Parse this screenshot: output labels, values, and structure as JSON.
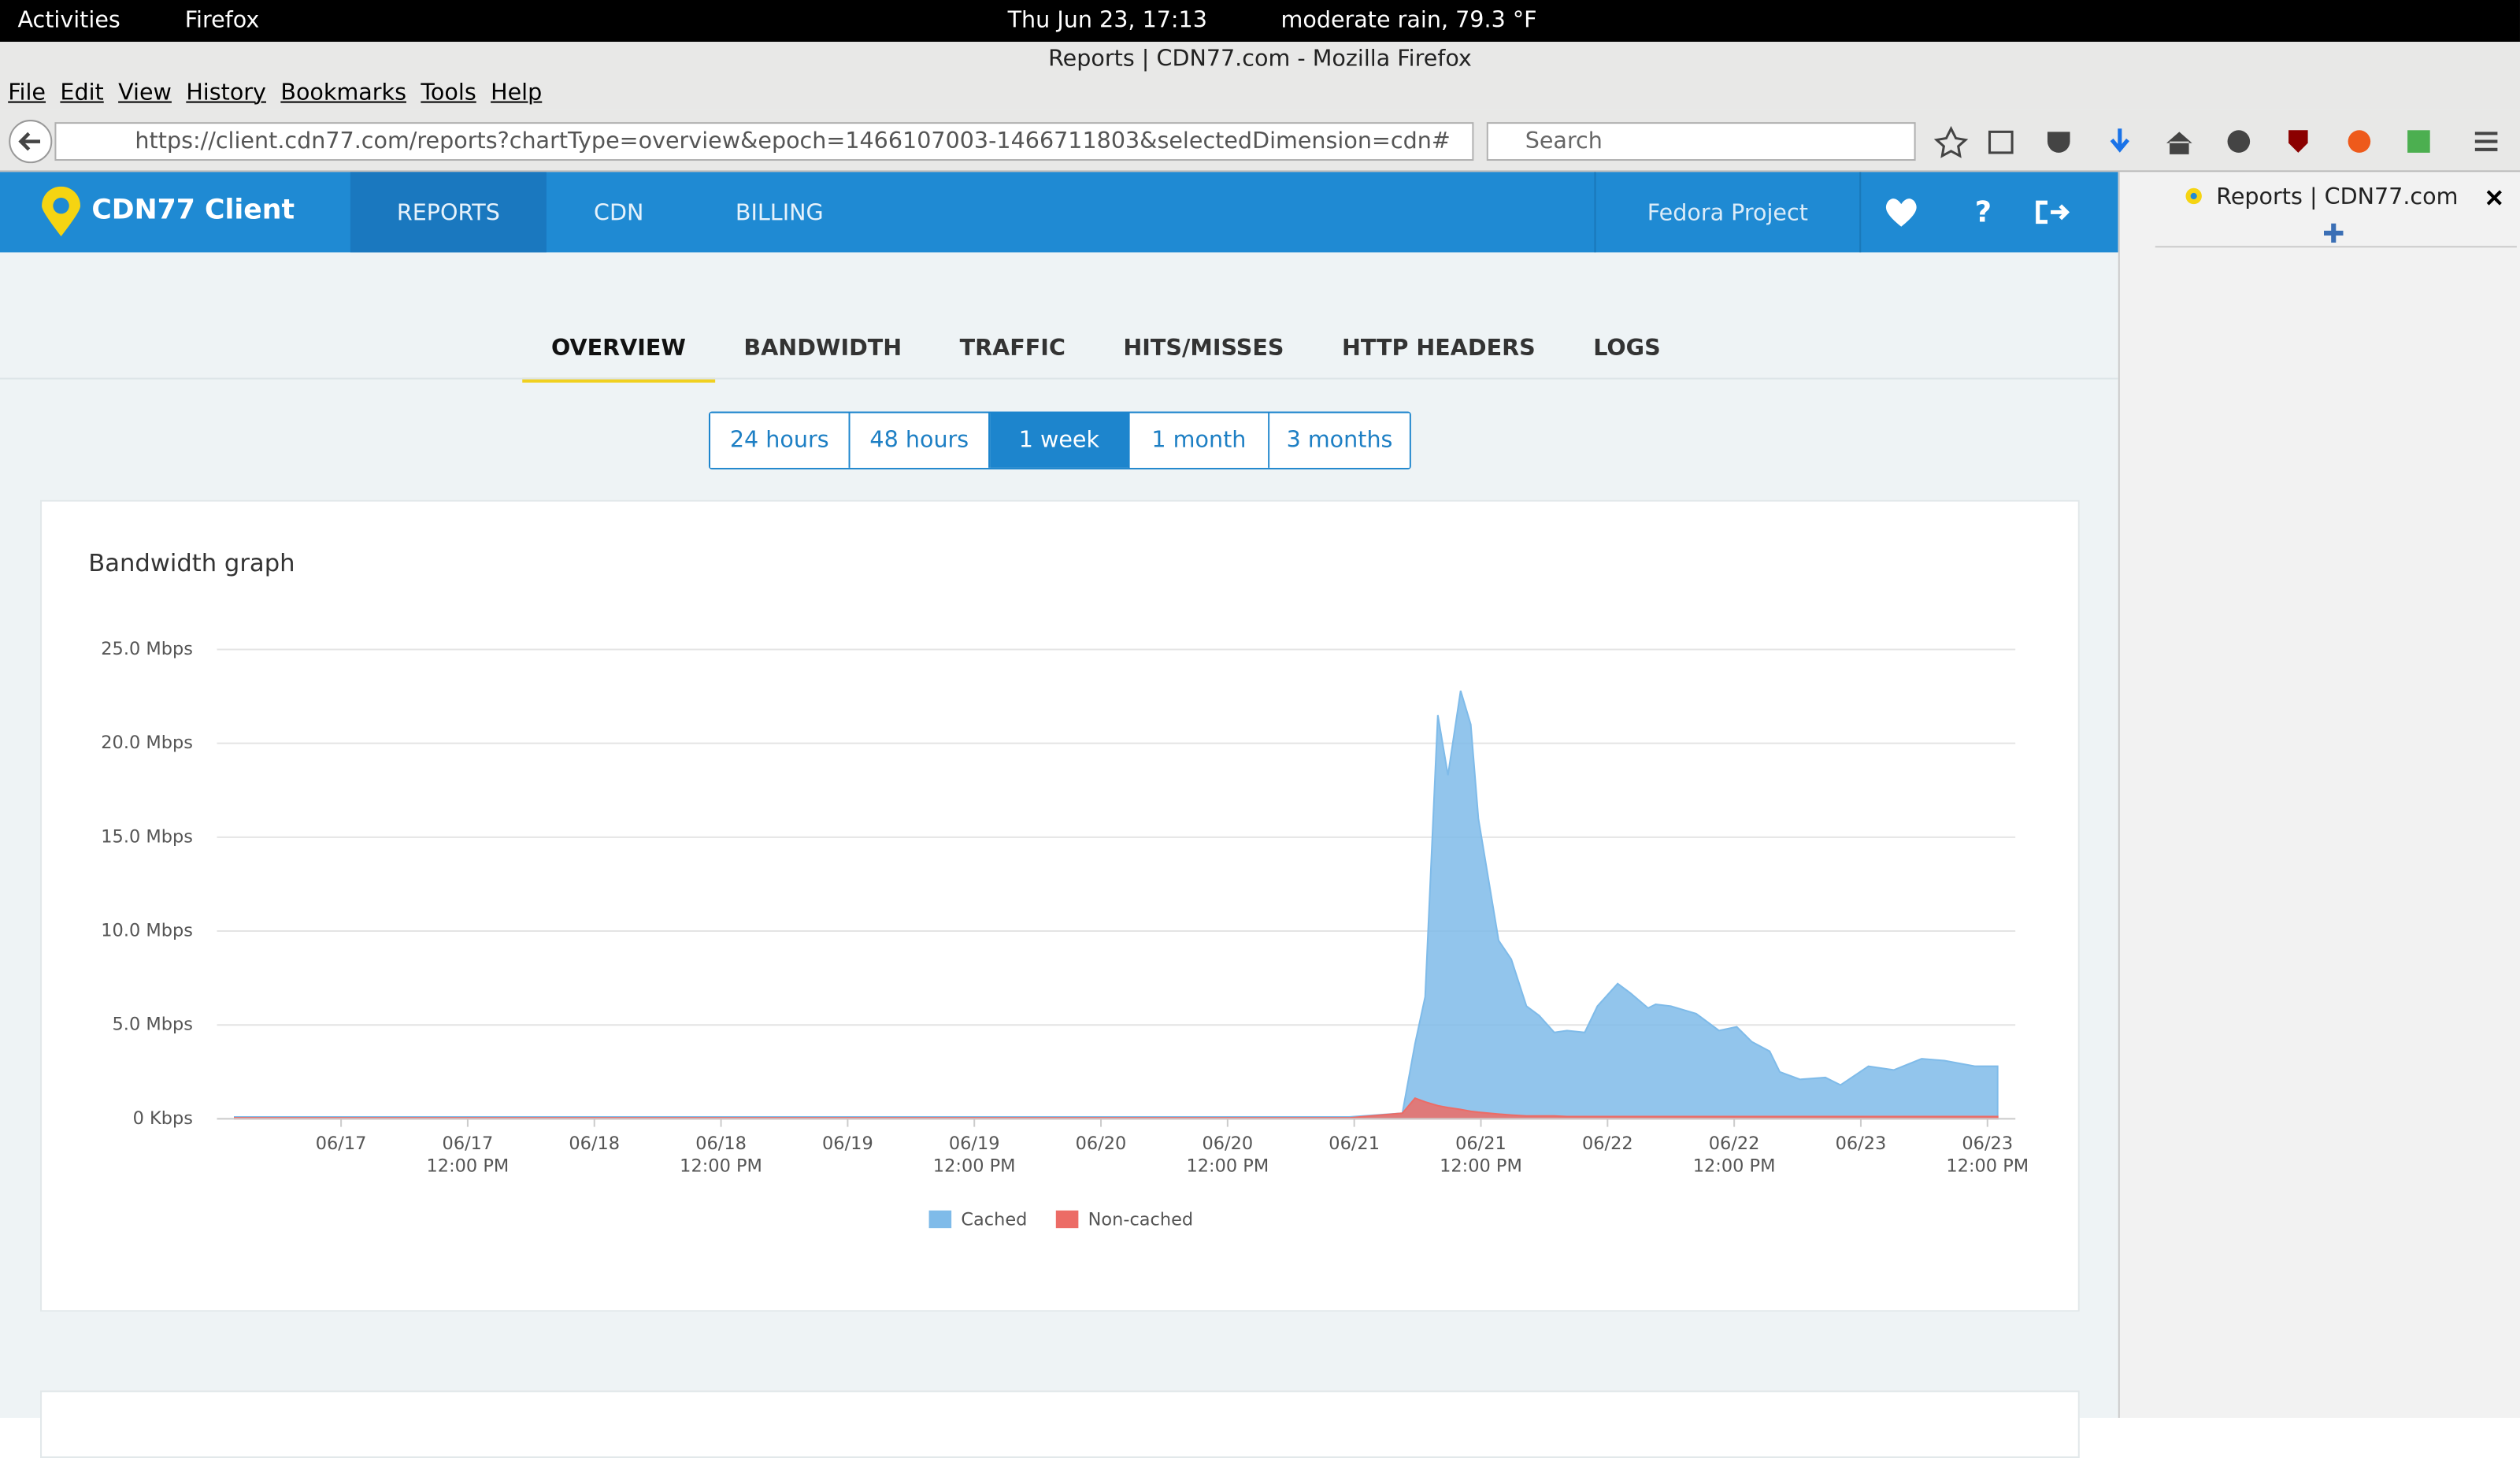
{
  "system_bar": {
    "activities": "Activities",
    "app": "Firefox",
    "clock": "Thu Jun 23, 17:13",
    "weather": "moderate rain, 79.3 °F"
  },
  "window_title": "Reports | CDN77.com - Mozilla Firefox",
  "menu": [
    "File",
    "Edit",
    "View",
    "History",
    "Bookmarks",
    "Tools",
    "Help"
  ],
  "url": "https://client.cdn77.com/reports?chartType=overview&epoch=1466107003-1466711803&selectedDimension=cdn#",
  "search_placeholder": "Search",
  "sidebar_tab": "Reports | CDN77.com",
  "app_header": {
    "logo": "CDN77 Client",
    "nav": [
      "REPORTS",
      "CDN",
      "BILLING"
    ],
    "project": "Fedora Project"
  },
  "tabs": [
    "OVERVIEW",
    "BANDWIDTH",
    "TRAFFIC",
    "HITS/MISSES",
    "HTTP HEADERS",
    "LOGS"
  ],
  "ranges": [
    "24 hours",
    "48 hours",
    "1 week",
    "1 month",
    "3 months"
  ],
  "chart_data": {
    "type": "area",
    "title": "Bandwidth graph",
    "x": [
      -0.42,
      3.98,
      4.19,
      4.24,
      4.28,
      4.33,
      4.37,
      4.42,
      4.46,
      4.49,
      4.57,
      4.62,
      4.68,
      4.73,
      4.79,
      4.84,
      4.91,
      4.96,
      5.04,
      5.09,
      5.16,
      5.19,
      5.25,
      5.35,
      5.44,
      5.51,
      5.57,
      5.64,
      5.68,
      5.76,
      5.86,
      5.92,
      6.03,
      6.13,
      6.24,
      6.33,
      6.45,
      6.54
    ],
    "series": [
      {
        "name": "Cached",
        "color": "#7fbbe9",
        "values": [
          0.1,
          0.1,
          0.3,
          4,
          6.5,
          21.5,
          18.3,
          22.8,
          21,
          16,
          9.5,
          8.5,
          6,
          5.5,
          4.6,
          4.7,
          4.6,
          6,
          7.2,
          6.7,
          5.9,
          6.1,
          6,
          5.6,
          4.7,
          4.9,
          4.1,
          3.6,
          2.5,
          2.1,
          2.2,
          1.8,
          2.8,
          2.6,
          3.2,
          3.1,
          2.8,
          2.8
        ]
      },
      {
        "name": "Non-cached",
        "color": "#ec6c66",
        "values": [
          0.05,
          0.05,
          0.3,
          1.1,
          0.9,
          0.7,
          0.6,
          0.5,
          0.4,
          0.35,
          0.25,
          0.2,
          0.15,
          0.15,
          0.15,
          0.12,
          0.12,
          0.12,
          0.12,
          0.12,
          0.12,
          0.12,
          0.12,
          0.12,
          0.12,
          0.12,
          0.12,
          0.12,
          0.12,
          0.12,
          0.12,
          0.12,
          0.12,
          0.12,
          0.12,
          0.12,
          0.12,
          0.12
        ]
      }
    ],
    "xlim": [
      -0.49,
      6.61
    ],
    "xticks": [
      {
        "value": 0,
        "label": "06/17"
      },
      {
        "value": 0.5,
        "label": "06/17\n12:00 PM"
      },
      {
        "value": 1,
        "label": "06/18"
      },
      {
        "value": 1.5,
        "label": "06/18\n12:00 PM"
      },
      {
        "value": 2,
        "label": "06/19"
      },
      {
        "value": 2.5,
        "label": "06/19\n12:00 PM"
      },
      {
        "value": 3,
        "label": "06/20"
      },
      {
        "value": 3.5,
        "label": "06/20\n12:00 PM"
      },
      {
        "value": 4,
        "label": "06/21"
      },
      {
        "value": 4.5,
        "label": "06/21\n12:00 PM"
      },
      {
        "value": 5,
        "label": "06/22"
      },
      {
        "value": 5.5,
        "label": "06/22\n12:00 PM"
      },
      {
        "value": 6,
        "label": "06/23"
      },
      {
        "value": 6.5,
        "label": "06/23\n12:00 PM"
      }
    ],
    "ylim": [
      0,
      25
    ],
    "yticks": [
      {
        "value": 0,
        "label": "0 Kbps"
      },
      {
        "value": 5,
        "label": "5.0 Mbps"
      },
      {
        "value": 10,
        "label": "10.0 Mbps"
      },
      {
        "value": 15,
        "label": "15.0 Mbps"
      },
      {
        "value": 20,
        "label": "20.0 Mbps"
      },
      {
        "value": 25,
        "label": "25.0 Mbps"
      }
    ],
    "grid": true
  }
}
